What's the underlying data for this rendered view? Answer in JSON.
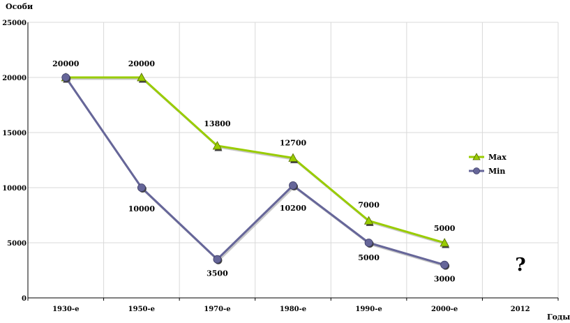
{
  "chart_data": {
    "type": "line",
    "title": "",
    "ylabel": "Особи",
    "xlabel": "Годы",
    "categories": [
      "1930-е",
      "1950-е",
      "1970-е",
      "1980-е",
      "1990-е",
      "2000-е",
      "2012"
    ],
    "ylim": [
      0,
      25000
    ],
    "yticks": [
      "0",
      "5000",
      "10000",
      "15000",
      "20000",
      "25000"
    ],
    "grid": true,
    "legend_position": "right",
    "annotation": "?",
    "series": [
      {
        "name": "Max",
        "color": "#99cc00",
        "marker": "triangle",
        "values": [
          20000,
          20000,
          13800,
          12700,
          7000,
          5000,
          null
        ],
        "labels": [
          "20000",
          "20000",
          "13800",
          "12700",
          "7000",
          "5000",
          ""
        ]
      },
      {
        "name": "Min",
        "color": "#666699",
        "marker": "circle",
        "values": [
          20000,
          10000,
          3500,
          10200,
          5000,
          3000,
          null
        ],
        "labels": [
          "",
          "10000",
          "3500",
          "10200",
          "5000",
          "3000",
          ""
        ]
      }
    ]
  }
}
